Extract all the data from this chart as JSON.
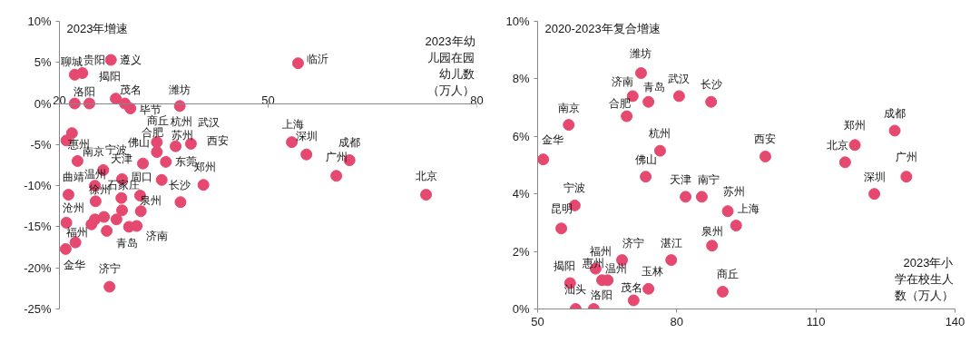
{
  "chart_data": [
    {
      "type": "scatter",
      "ylabel": "2023年增速",
      "xlabel": "2023年幼儿园在园幼儿数（万人）",
      "marker": "circle",
      "xlim": [
        20,
        80
      ],
      "xticks": [
        20,
        50,
        80
      ],
      "ylim": [
        -25,
        10
      ],
      "yticks": [
        {
          "value": -25,
          "label": "-25%"
        },
        {
          "value": -20,
          "label": "-20%"
        },
        {
          "value": -15,
          "label": "-15%"
        },
        {
          "value": -10,
          "label": "-10%"
        },
        {
          "value": -5,
          "label": "-5%"
        },
        {
          "value": 0,
          "label": "0%"
        },
        {
          "value": 5,
          "label": "5%"
        },
        {
          "value": 10,
          "label": "10%"
        }
      ],
      "x": [
        22.2,
        23.3,
        27.4,
        22.2,
        24.3,
        28.1,
        29.4,
        30.2,
        37.3,
        21.8,
        21.0,
        34.0,
        34.0,
        36.7,
        38.9,
        22.6,
        26.3,
        32.0,
        35.3,
        29.0,
        34.7,
        40.7,
        21.3,
        25.1,
        25.2,
        28.9,
        31.6,
        37.4,
        29.0,
        31.7,
        21.0,
        24.6,
        25.1,
        26.4,
        28.2,
        26.8,
        30.0,
        31.1,
        22.3,
        20.9,
        27.2,
        54.3,
        53.4,
        55.5,
        61.7,
        59.8,
        72.7
      ],
      "series": [
        {
          "color": "#e6496f",
          "values": [
            3.5,
            3.7,
            5.3,
            0,
            0,
            0.6,
            0,
            -0.6,
            -0.3,
            -3.6,
            -4.5,
            -4.7,
            -5.9,
            -5.2,
            -4.9,
            -7.0,
            -8.1,
            -7.3,
            -7.1,
            -9.2,
            -9.3,
            -9.9,
            -11.1,
            -10.0,
            -11.9,
            -11.5,
            -11.2,
            -12.0,
            -13.0,
            -13.1,
            -14.5,
            -14.7,
            -14.1,
            -13.8,
            -14.1,
            -15.5,
            -15.0,
            -14.9,
            -16.9,
            -17.7,
            -22.3,
            4.9,
            -4.7,
            -6.2,
            -6.9,
            -8.8,
            -11.1
          ]
        }
      ],
      "annotations": [
        {
          "text": "聊城",
          "x": 22.2,
          "y": 3.5
        },
        {
          "text": "贵阳",
          "x": 23.3,
          "y": 3.7
        },
        {
          "text": "遵义",
          "x": 27.4,
          "y": 5.3
        },
        {
          "text": "揭阳",
          "x": 28.1,
          "y": 0.6
        },
        {
          "text": "洛阳",
          "x": 24.3,
          "y": 0
        },
        {
          "text": "茂名",
          "x": 29.4,
          "y": 0
        },
        {
          "text": "毕节",
          "x": 30.2,
          "y": -0.6
        },
        {
          "text": "潍坊",
          "x": 37.3,
          "y": -0.3
        },
        {
          "text": "商丘",
          "x": 34.0,
          "y": -4.7
        },
        {
          "text": "杭州",
          "x": 36.7,
          "y": -5.2
        },
        {
          "text": "武汉",
          "x": 38.9,
          "y": -4.9
        },
        {
          "text": "合肥",
          "x": 34.0,
          "y": -4.7
        },
        {
          "text": "佛山",
          "x": 34.0,
          "y": -4.7
        },
        {
          "text": "苏州",
          "x": 36.7,
          "y": -5.2
        },
        {
          "text": "西安",
          "x": 38.9,
          "y": -4.9
        },
        {
          "text": "惠州",
          "x": 21.0,
          "y": -4.5
        },
        {
          "text": "宁波",
          "x": 26.3,
          "y": -8.1
        },
        {
          "text": "南京",
          "x": 22.6,
          "y": -7.0
        },
        {
          "text": "天津",
          "x": 29.0,
          "y": -9.2
        },
        {
          "text": "东莞",
          "x": 35.3,
          "y": -7.1
        },
        {
          "text": "郑州",
          "x": 40.7,
          "y": -9.9
        },
        {
          "text": "曲靖",
          "x": 21.3,
          "y": -11.1
        },
        {
          "text": "温州",
          "x": 25.1,
          "y": -10.0
        },
        {
          "text": "周口",
          "x": 29.0,
          "y": -9.2
        },
        {
          "text": "长沙",
          "x": 34.7,
          "y": -9.3
        },
        {
          "text": "石家庄",
          "x": 28.9,
          "y": -11.5
        },
        {
          "text": "沧州",
          "x": 21.3,
          "y": -11.1
        },
        {
          "text": "徐州",
          "x": 25.2,
          "y": -11.9
        },
        {
          "text": "泉州",
          "x": 31.6,
          "y": -11.2
        },
        {
          "text": "福州",
          "x": 21.0,
          "y": -14.5
        },
        {
          "text": "青岛",
          "x": 30.0,
          "y": -15.0
        },
        {
          "text": "济南",
          "x": 31.1,
          "y": -14.9
        },
        {
          "text": "金华",
          "x": 20.9,
          "y": -17.7
        },
        {
          "text": "济宁",
          "x": 27.2,
          "y": -22.3
        },
        {
          "text": "临沂",
          "x": 54.3,
          "y": 4.9
        },
        {
          "text": "上海",
          "x": 53.4,
          "y": -4.7
        },
        {
          "text": "深圳",
          "x": 55.5,
          "y": -6.2
        },
        {
          "text": "成都",
          "x": 61.7,
          "y": -6.9
        },
        {
          "text": "广州",
          "x": 59.8,
          "y": -8.8
        },
        {
          "text": "北京",
          "x": 72.7,
          "y": -11.1
        }
      ]
    },
    {
      "type": "scatter",
      "ylabel": "2020-2023年复合增速",
      "xlabel": "2023年小学在校生人数（万人）",
      "marker": "circle",
      "xlim": [
        50,
        140
      ],
      "xticks": [
        50,
        80,
        110,
        140
      ],
      "ylim": [
        0,
        10
      ],
      "yticks": [
        {
          "value": 0,
          "label": "0%"
        },
        {
          "value": 2,
          "label": "2%"
        },
        {
          "value": 4,
          "label": "4%"
        },
        {
          "value": 6,
          "label": "6%"
        },
        {
          "value": 8,
          "label": "8%"
        },
        {
          "value": 10,
          "label": "10%"
        }
      ],
      "x": [
        72.3,
        70.5,
        73.9,
        80.5,
        87.4,
        69.2,
        56.7,
        51.2,
        76.4,
        73.3,
        81.9,
        85.4,
        58.0,
        55.1,
        91.0,
        92.8,
        87.6,
        78.8,
        68.2,
        62.5,
        63.9,
        65.1,
        57.0,
        73.9,
        89.9,
        70.7,
        58.2,
        62.1,
        99.1,
        116.3,
        118.4,
        127.0,
        129.5,
        122.6
      ],
      "series": [
        {
          "color": "#e6496f",
          "values": [
            8.2,
            7.4,
            7.2,
            7.4,
            7.2,
            6.7,
            6.4,
            5.2,
            5.5,
            4.6,
            3.9,
            3.9,
            3.6,
            2.8,
            3.4,
            2.9,
            2.2,
            1.7,
            1.7,
            1.4,
            1.0,
            1.0,
            0.9,
            0.7,
            0.6,
            0.3,
            0.0,
            0.0,
            5.3,
            5.1,
            5.7,
            6.2,
            4.6,
            4.0
          ]
        }
      ],
      "annotations": [
        {
          "text": "潍坊",
          "x": 72.3,
          "y": 8.2
        },
        {
          "text": "济南",
          "x": 70.5,
          "y": 7.4
        },
        {
          "text": "青岛",
          "x": 73.9,
          "y": 7.2
        },
        {
          "text": "武汉",
          "x": 80.5,
          "y": 7.4
        },
        {
          "text": "长沙",
          "x": 87.4,
          "y": 7.2
        },
        {
          "text": "南京",
          "x": 56.7,
          "y": 6.4
        },
        {
          "text": "合肥",
          "x": 69.2,
          "y": 6.7
        },
        {
          "text": "金华",
          "x": 51.2,
          "y": 5.2
        },
        {
          "text": "杭州",
          "x": 76.4,
          "y": 5.5
        },
        {
          "text": "佛山",
          "x": 73.3,
          "y": 4.6
        },
        {
          "text": "天津",
          "x": 81.9,
          "y": 3.9
        },
        {
          "text": "南宁",
          "x": 85.4,
          "y": 3.9
        },
        {
          "text": "宁波",
          "x": 58.0,
          "y": 3.6
        },
        {
          "text": "昆明",
          "x": 55.1,
          "y": 2.8
        },
        {
          "text": "苏州",
          "x": 91.0,
          "y": 3.4
        },
        {
          "text": "上海",
          "x": 92.8,
          "y": 2.9
        },
        {
          "text": "泉州",
          "x": 87.6,
          "y": 2.2
        },
        {
          "text": "湛江",
          "x": 78.8,
          "y": 1.7
        },
        {
          "text": "济宁",
          "x": 68.2,
          "y": 1.7
        },
        {
          "text": "福州",
          "x": 62.5,
          "y": 1.4
        },
        {
          "text": "揭阳",
          "x": 57.0,
          "y": 0.9
        },
        {
          "text": "惠州",
          "x": 63.9,
          "y": 1.0
        },
        {
          "text": "温州",
          "x": 65.1,
          "y": 1.0
        },
        {
          "text": "玉林",
          "x": 73.9,
          "y": 0.7
        },
        {
          "text": "商丘",
          "x": 89.9,
          "y": 0.6
        },
        {
          "text": "茂名",
          "x": 70.7,
          "y": 0.3
        },
        {
          "text": "汕头",
          "x": 58.2,
          "y": 0.0
        },
        {
          "text": "洛阳",
          "x": 62.1,
          "y": 0.0
        },
        {
          "text": "西安",
          "x": 99.1,
          "y": 5.3
        },
        {
          "text": "郑州",
          "x": 118.4,
          "y": 5.7
        },
        {
          "text": "北京",
          "x": 116.3,
          "y": 5.1
        },
        {
          "text": "成都",
          "x": 127.0,
          "y": 6.2
        },
        {
          "text": "广州",
          "x": 129.5,
          "y": 4.6
        },
        {
          "text": "深圳",
          "x": 122.6,
          "y": 4.0
        }
      ]
    }
  ]
}
